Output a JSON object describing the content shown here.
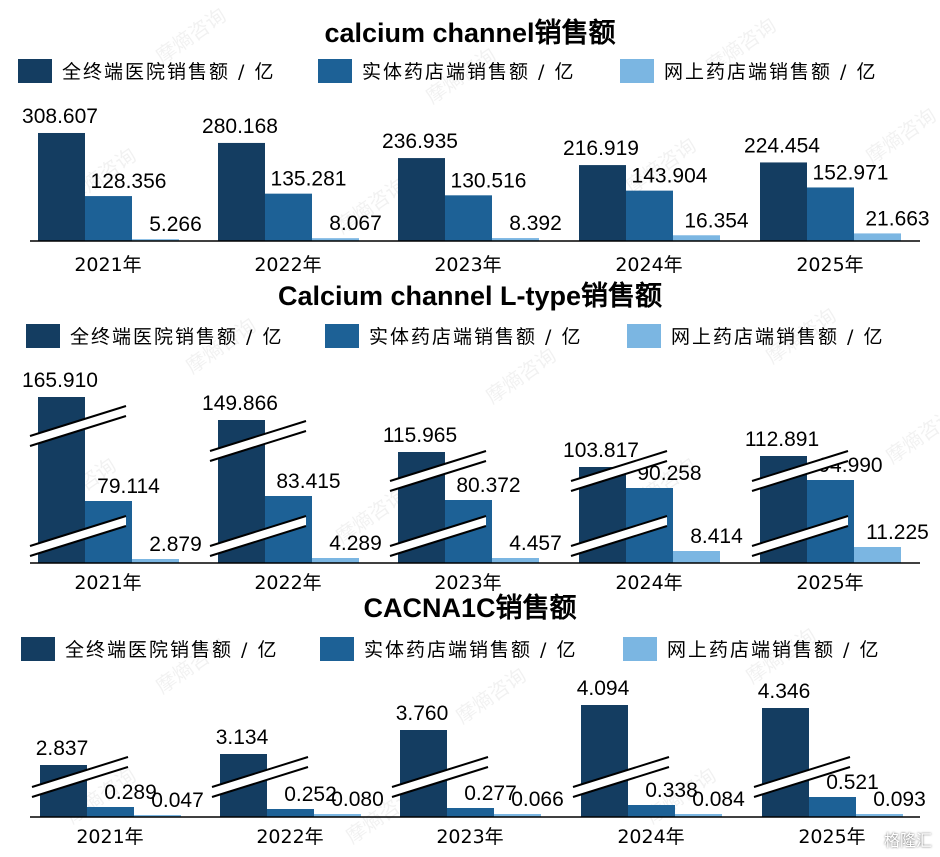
{
  "colors": {
    "hospital": "#143d61",
    "retail": "#1d6196",
    "online": "#7bb6e2",
    "axis": "#000000"
  },
  "chart_data": [
    {
      "type": "bar",
      "title": "calcium channel销售额",
      "categories": [
        "2021年",
        "2022年",
        "2023年",
        "2024年",
        "2025年"
      ],
      "series": [
        {
          "name": "全终端医院销售额 / 亿",
          "values": [
            308.607,
            280.168,
            236.935,
            216.919,
            224.454
          ]
        },
        {
          "name": "实体药店端销售额 / 亿",
          "values": [
            128.356,
            135.281,
            130.516,
            143.904,
            152.971
          ]
        },
        {
          "name": "网上药店端销售额 / 亿",
          "values": [
            5.266,
            8.067,
            8.392,
            16.354,
            21.663
          ]
        }
      ],
      "labels": [
        [
          "308.607",
          "128.356",
          "5.266"
        ],
        [
          "280.168",
          "135.281",
          "8.067"
        ],
        [
          "236.935",
          "130.516",
          "8.392"
        ],
        [
          "216.919",
          "143.904",
          "16.354"
        ],
        [
          "224.454",
          "152.971",
          "21.663"
        ]
      ],
      "axis_break": false,
      "legend": "top"
    },
    {
      "type": "bar",
      "title": "Calcium channel L-type销售额",
      "categories": [
        "2021年",
        "2022年",
        "2023年",
        "2024年",
        "2025年"
      ],
      "series": [
        {
          "name": "全终端医院销售额 / 亿",
          "values": [
            165.91,
            149.866,
            115.965,
            103.817,
            112.891
          ]
        },
        {
          "name": "实体药店端销售额 / 亿",
          "values": [
            79.114,
            83.415,
            80.372,
            90.258,
            94.99
          ]
        },
        {
          "name": "网上药店端销售额 / 亿",
          "values": [
            2.879,
            4.289,
            4.457,
            8.414,
            11.225
          ]
        }
      ],
      "labels": [
        [
          "165.910",
          "79.114",
          "2.879"
        ],
        [
          "149.866",
          "83.415",
          "4.289"
        ],
        [
          "115.965",
          "80.372",
          "4.457"
        ],
        [
          "103.817",
          "90.258",
          "8.414"
        ],
        [
          "112.891",
          "94.990",
          "11.225"
        ]
      ],
      "axis_break": true,
      "legend": "top"
    },
    {
      "type": "bar",
      "title": "CACNA1C销售额",
      "categories": [
        "2021年",
        "2022年",
        "2023年",
        "2024年",
        "2025年"
      ],
      "series": [
        {
          "name": "全终端医院销售额 / 亿",
          "values": [
            2.837,
            3.134,
            3.76,
            4.094,
            4.346
          ]
        },
        {
          "name": "实体药店端销售额 / 亿",
          "values": [
            0.289,
            0.252,
            0.277,
            0.338,
            0.521
          ]
        },
        {
          "name": "网上药店端销售额 / 亿",
          "values": [
            0.047,
            0.08,
            0.066,
            0.084,
            0.093
          ]
        }
      ],
      "labels": [
        [
          "2.837",
          "0.289",
          "0.047"
        ],
        [
          "3.134",
          "0.252",
          "0.080"
        ],
        [
          "3.760",
          "0.277",
          "0.066"
        ],
        [
          "4.094",
          "0.338",
          "0.084"
        ],
        [
          "4.346",
          "0.521",
          "0.093"
        ]
      ],
      "axis_break": true,
      "legend": "top"
    }
  ],
  "watermark": "摩熵咨询",
  "brand": "格隆汇"
}
